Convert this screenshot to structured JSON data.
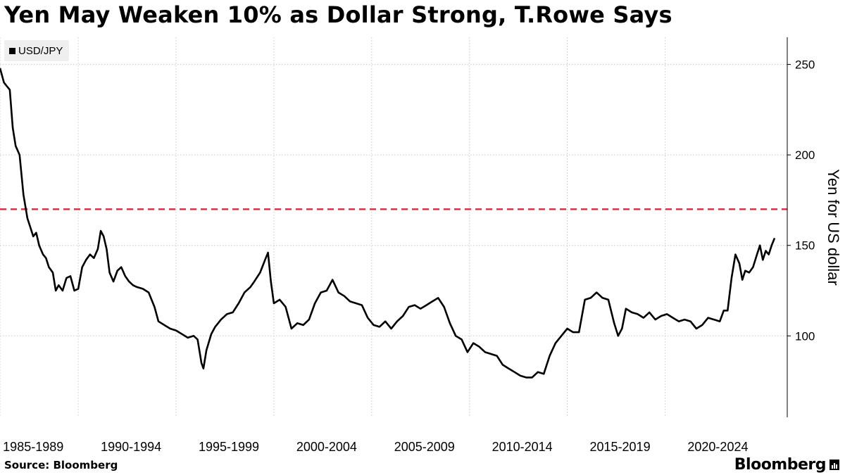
{
  "page": {
    "title": "Yen May Weaken 10% as Dollar Strong, T.Rowe Says",
    "source": "Source: Bloomberg",
    "brand": "Bloomberg",
    "brand_icon": "bloomberg-chart-icon"
  },
  "colors": {
    "line": "#000000",
    "reference_line": "#e0263f",
    "grid": "#c8c8c8"
  },
  "chart_data": {
    "type": "line",
    "title": "Yen May Weaken 10% as Dollar Strong, T.Rowe Says",
    "legend": {
      "entries": [
        "USD/JPY"
      ],
      "placement": "top-left"
    },
    "ylabel": "Yen for US dollar",
    "y_axis_side": "right",
    "ylim": [
      55,
      265
    ],
    "y_ticks": [
      100,
      150,
      200,
      250
    ],
    "xlim": [
      1985.0,
      2024.6
    ],
    "x_gridlines": [
      1985,
      1989,
      1994,
      1999,
      2004,
      2009,
      2014,
      2019
    ],
    "x_tick_labels": [
      {
        "label": "1985-1989",
        "x": 1986.7
      },
      {
        "label": "1990-1994",
        "x": 1991.7
      },
      {
        "label": "1995-1999",
        "x": 1996.7
      },
      {
        "label": "2000-2004",
        "x": 2001.7
      },
      {
        "label": "2005-2009",
        "x": 2006.7
      },
      {
        "label": "2010-2014",
        "x": 2011.7
      },
      {
        "label": "2015-2019",
        "x": 2016.7
      },
      {
        "label": "2020-2024",
        "x": 2021.7
      }
    ],
    "reference_line": {
      "y": 170,
      "style": "dashed",
      "color": "#e0263f"
    },
    "grid": true,
    "series": [
      {
        "name": "USD/JPY",
        "x": [
          1985.0,
          1985.1,
          1985.2,
          1985.35,
          1985.5,
          1985.65,
          1985.8,
          1986.0,
          1986.2,
          1986.4,
          1986.55,
          1986.7,
          1986.85,
          1987.0,
          1987.2,
          1987.35,
          1987.5,
          1987.7,
          1987.85,
          1988.0,
          1988.2,
          1988.4,
          1988.6,
          1988.8,
          1989.0,
          1989.2,
          1989.4,
          1989.6,
          1989.8,
          1990.0,
          1990.15,
          1990.3,
          1990.45,
          1990.6,
          1990.8,
          1991.0,
          1991.2,
          1991.4,
          1991.6,
          1991.8,
          1992.0,
          1992.3,
          1992.6,
          1992.9,
          1993.1,
          1993.4,
          1993.7,
          1994.0,
          1994.3,
          1994.6,
          1994.9,
          1995.1,
          1995.3,
          1995.4,
          1995.55,
          1995.8,
          1996.0,
          1996.3,
          1996.6,
          1996.9,
          1997.2,
          1997.5,
          1997.8,
          1998.0,
          1998.3,
          1998.55,
          1998.7,
          1998.85,
          1999.0,
          1999.3,
          1999.6,
          1999.9,
          2000.2,
          2000.5,
          2000.8,
          2001.1,
          2001.4,
          2001.7,
          2002.0,
          2002.3,
          2002.6,
          2002.9,
          2003.2,
          2003.5,
          2003.8,
          2004.1,
          2004.4,
          2004.7,
          2005.0,
          2005.3,
          2005.6,
          2005.9,
          2006.2,
          2006.5,
          2006.8,
          2007.1,
          2007.4,
          2007.7,
          2008.0,
          2008.3,
          2008.6,
          2008.9,
          2009.2,
          2009.5,
          2009.8,
          2010.1,
          2010.4,
          2010.7,
          2011.0,
          2011.3,
          2011.6,
          2011.9,
          2012.2,
          2012.5,
          2012.8,
          2013.1,
          2013.4,
          2013.7,
          2014.0,
          2014.3,
          2014.6,
          2014.9,
          2015.2,
          2015.5,
          2015.8,
          2016.1,
          2016.4,
          2016.6,
          2016.8,
          2017.0,
          2017.3,
          2017.6,
          2017.9,
          2018.2,
          2018.5,
          2018.8,
          2019.1,
          2019.4,
          2019.7,
          2020.0,
          2020.3,
          2020.6,
          2020.9,
          2021.2,
          2021.5,
          2021.8,
          2022.0,
          2022.2,
          2022.4,
          2022.6,
          2022.8,
          2022.95,
          2023.1,
          2023.3,
          2023.5,
          2023.7,
          2023.85,
          2024.0,
          2024.15,
          2024.3,
          2024.45,
          2024.6
        ],
        "values": [
          248,
          244,
          240,
          238,
          236,
          215,
          205,
          200,
          178,
          165,
          160,
          155,
          157,
          150,
          145,
          143,
          138,
          135,
          125,
          128,
          125,
          132,
          133,
          125,
          126,
          138,
          142,
          145,
          143,
          148,
          158,
          155,
          148,
          135,
          130,
          136,
          138,
          133,
          130,
          128,
          127,
          126,
          124,
          116,
          108,
          106,
          104,
          103,
          101,
          99,
          100,
          98,
          85,
          82,
          92,
          101,
          105,
          109,
          112,
          113,
          118,
          124,
          127,
          130,
          135,
          142,
          146,
          130,
          118,
          120,
          116,
          104,
          107,
          106,
          109,
          118,
          124,
          125,
          131,
          124,
          122,
          119,
          118,
          117,
          110,
          106,
          105,
          108,
          104,
          108,
          111,
          116,
          117,
          115,
          117,
          119,
          121,
          116,
          107,
          100,
          98,
          91,
          96,
          94,
          91,
          90,
          89,
          84,
          82,
          80,
          78,
          77,
          77,
          80,
          79,
          89,
          96,
          100,
          104,
          102,
          102,
          120,
          121,
          124,
          121,
          120,
          107,
          100,
          104,
          115,
          113,
          112,
          110,
          113,
          109,
          111,
          112,
          110,
          108,
          109,
          108,
          104,
          106,
          110,
          109,
          108,
          114,
          114,
          132,
          145,
          140,
          131,
          136,
          135,
          138,
          145,
          150,
          142,
          147,
          145,
          150,
          154
        ]
      }
    ]
  }
}
